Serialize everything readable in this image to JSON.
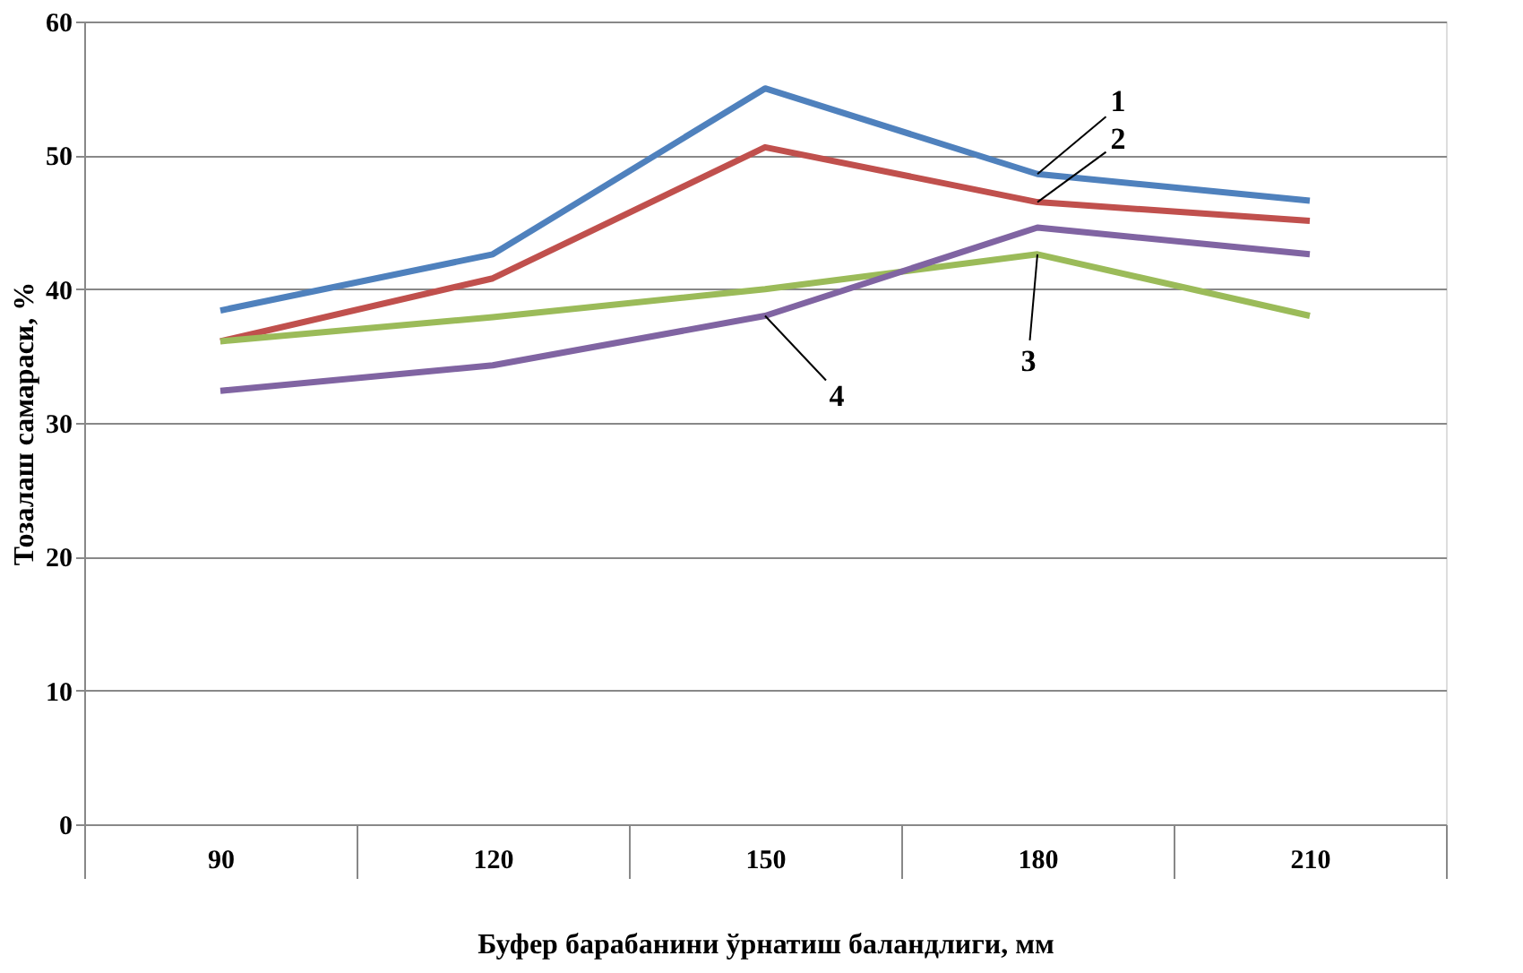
{
  "chart_data": {
    "type": "line",
    "xlabel": "Буфер барабанини ўрнатиш баландлиги, мм",
    "ylabel": "Тозалаш самараси, %",
    "categories": [
      "90",
      "120",
      "150",
      "180",
      "210"
    ],
    "series": [
      {
        "color": "#4f81bd",
        "values": [
          38.4,
          42.6,
          55.0,
          48.6,
          46.6
        ]
      },
      {
        "color": "#c0504d",
        "values": [
          36.1,
          40.8,
          50.6,
          46.5,
          45.1
        ]
      },
      {
        "color": "#9bbb59",
        "values": [
          36.1,
          37.9,
          40.0,
          42.6,
          38.0
        ]
      },
      {
        "color": "#8064a2",
        "values": [
          32.4,
          34.3,
          38.0,
          44.6,
          42.6
        ]
      }
    ],
    "annotations": [
      {
        "text": "1",
        "x": "180",
        "y": 48.6
      },
      {
        "text": "2",
        "x": "180",
        "y": 46.5
      },
      {
        "text": "3",
        "x": "180",
        "y": 42.6
      },
      {
        "text": "4",
        "x": "150",
        "y": 38.0
      }
    ],
    "ylim": [
      0,
      60
    ],
    "yticks": [
      0,
      10,
      20,
      30,
      40,
      50,
      60
    ],
    "grid": "y",
    "marker": "none",
    "line_style": "solid"
  }
}
